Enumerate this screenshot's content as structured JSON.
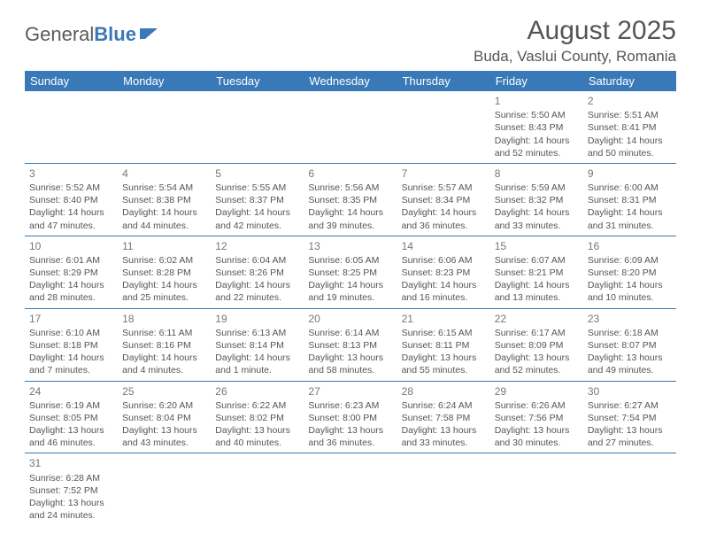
{
  "logo": {
    "text1": "General",
    "text2": "Blue"
  },
  "title": "August 2025",
  "location": "Buda, Vaslui County, Romania",
  "colors": {
    "header_bg": "#3a79b7",
    "header_fg": "#ffffff",
    "text": "#555555",
    "rule": "#3a79b7"
  },
  "days": [
    "Sunday",
    "Monday",
    "Tuesday",
    "Wednesday",
    "Thursday",
    "Friday",
    "Saturday"
  ],
  "weeks": [
    [
      null,
      null,
      null,
      null,
      null,
      {
        "n": "1",
        "sr": "Sunrise: 5:50 AM",
        "ss": "Sunset: 8:43 PM",
        "d1": "Daylight: 14 hours",
        "d2": "and 52 minutes."
      },
      {
        "n": "2",
        "sr": "Sunrise: 5:51 AM",
        "ss": "Sunset: 8:41 PM",
        "d1": "Daylight: 14 hours",
        "d2": "and 50 minutes."
      }
    ],
    [
      {
        "n": "3",
        "sr": "Sunrise: 5:52 AM",
        "ss": "Sunset: 8:40 PM",
        "d1": "Daylight: 14 hours",
        "d2": "and 47 minutes."
      },
      {
        "n": "4",
        "sr": "Sunrise: 5:54 AM",
        "ss": "Sunset: 8:38 PM",
        "d1": "Daylight: 14 hours",
        "d2": "and 44 minutes."
      },
      {
        "n": "5",
        "sr": "Sunrise: 5:55 AM",
        "ss": "Sunset: 8:37 PM",
        "d1": "Daylight: 14 hours",
        "d2": "and 42 minutes."
      },
      {
        "n": "6",
        "sr": "Sunrise: 5:56 AM",
        "ss": "Sunset: 8:35 PM",
        "d1": "Daylight: 14 hours",
        "d2": "and 39 minutes."
      },
      {
        "n": "7",
        "sr": "Sunrise: 5:57 AM",
        "ss": "Sunset: 8:34 PM",
        "d1": "Daylight: 14 hours",
        "d2": "and 36 minutes."
      },
      {
        "n": "8",
        "sr": "Sunrise: 5:59 AM",
        "ss": "Sunset: 8:32 PM",
        "d1": "Daylight: 14 hours",
        "d2": "and 33 minutes."
      },
      {
        "n": "9",
        "sr": "Sunrise: 6:00 AM",
        "ss": "Sunset: 8:31 PM",
        "d1": "Daylight: 14 hours",
        "d2": "and 31 minutes."
      }
    ],
    [
      {
        "n": "10",
        "sr": "Sunrise: 6:01 AM",
        "ss": "Sunset: 8:29 PM",
        "d1": "Daylight: 14 hours",
        "d2": "and 28 minutes."
      },
      {
        "n": "11",
        "sr": "Sunrise: 6:02 AM",
        "ss": "Sunset: 8:28 PM",
        "d1": "Daylight: 14 hours",
        "d2": "and 25 minutes."
      },
      {
        "n": "12",
        "sr": "Sunrise: 6:04 AM",
        "ss": "Sunset: 8:26 PM",
        "d1": "Daylight: 14 hours",
        "d2": "and 22 minutes."
      },
      {
        "n": "13",
        "sr": "Sunrise: 6:05 AM",
        "ss": "Sunset: 8:25 PM",
        "d1": "Daylight: 14 hours",
        "d2": "and 19 minutes."
      },
      {
        "n": "14",
        "sr": "Sunrise: 6:06 AM",
        "ss": "Sunset: 8:23 PM",
        "d1": "Daylight: 14 hours",
        "d2": "and 16 minutes."
      },
      {
        "n": "15",
        "sr": "Sunrise: 6:07 AM",
        "ss": "Sunset: 8:21 PM",
        "d1": "Daylight: 14 hours",
        "d2": "and 13 minutes."
      },
      {
        "n": "16",
        "sr": "Sunrise: 6:09 AM",
        "ss": "Sunset: 8:20 PM",
        "d1": "Daylight: 14 hours",
        "d2": "and 10 minutes."
      }
    ],
    [
      {
        "n": "17",
        "sr": "Sunrise: 6:10 AM",
        "ss": "Sunset: 8:18 PM",
        "d1": "Daylight: 14 hours",
        "d2": "and 7 minutes."
      },
      {
        "n": "18",
        "sr": "Sunrise: 6:11 AM",
        "ss": "Sunset: 8:16 PM",
        "d1": "Daylight: 14 hours",
        "d2": "and 4 minutes."
      },
      {
        "n": "19",
        "sr": "Sunrise: 6:13 AM",
        "ss": "Sunset: 8:14 PM",
        "d1": "Daylight: 14 hours",
        "d2": "and 1 minute."
      },
      {
        "n": "20",
        "sr": "Sunrise: 6:14 AM",
        "ss": "Sunset: 8:13 PM",
        "d1": "Daylight: 13 hours",
        "d2": "and 58 minutes."
      },
      {
        "n": "21",
        "sr": "Sunrise: 6:15 AM",
        "ss": "Sunset: 8:11 PM",
        "d1": "Daylight: 13 hours",
        "d2": "and 55 minutes."
      },
      {
        "n": "22",
        "sr": "Sunrise: 6:17 AM",
        "ss": "Sunset: 8:09 PM",
        "d1": "Daylight: 13 hours",
        "d2": "and 52 minutes."
      },
      {
        "n": "23",
        "sr": "Sunrise: 6:18 AM",
        "ss": "Sunset: 8:07 PM",
        "d1": "Daylight: 13 hours",
        "d2": "and 49 minutes."
      }
    ],
    [
      {
        "n": "24",
        "sr": "Sunrise: 6:19 AM",
        "ss": "Sunset: 8:05 PM",
        "d1": "Daylight: 13 hours",
        "d2": "and 46 minutes."
      },
      {
        "n": "25",
        "sr": "Sunrise: 6:20 AM",
        "ss": "Sunset: 8:04 PM",
        "d1": "Daylight: 13 hours",
        "d2": "and 43 minutes."
      },
      {
        "n": "26",
        "sr": "Sunrise: 6:22 AM",
        "ss": "Sunset: 8:02 PM",
        "d1": "Daylight: 13 hours",
        "d2": "and 40 minutes."
      },
      {
        "n": "27",
        "sr": "Sunrise: 6:23 AM",
        "ss": "Sunset: 8:00 PM",
        "d1": "Daylight: 13 hours",
        "d2": "and 36 minutes."
      },
      {
        "n": "28",
        "sr": "Sunrise: 6:24 AM",
        "ss": "Sunset: 7:58 PM",
        "d1": "Daylight: 13 hours",
        "d2": "and 33 minutes."
      },
      {
        "n": "29",
        "sr": "Sunrise: 6:26 AM",
        "ss": "Sunset: 7:56 PM",
        "d1": "Daylight: 13 hours",
        "d2": "and 30 minutes."
      },
      {
        "n": "30",
        "sr": "Sunrise: 6:27 AM",
        "ss": "Sunset: 7:54 PM",
        "d1": "Daylight: 13 hours",
        "d2": "and 27 minutes."
      }
    ],
    [
      {
        "n": "31",
        "sr": "Sunrise: 6:28 AM",
        "ss": "Sunset: 7:52 PM",
        "d1": "Daylight: 13 hours",
        "d2": "and 24 minutes."
      },
      null,
      null,
      null,
      null,
      null,
      null
    ]
  ]
}
